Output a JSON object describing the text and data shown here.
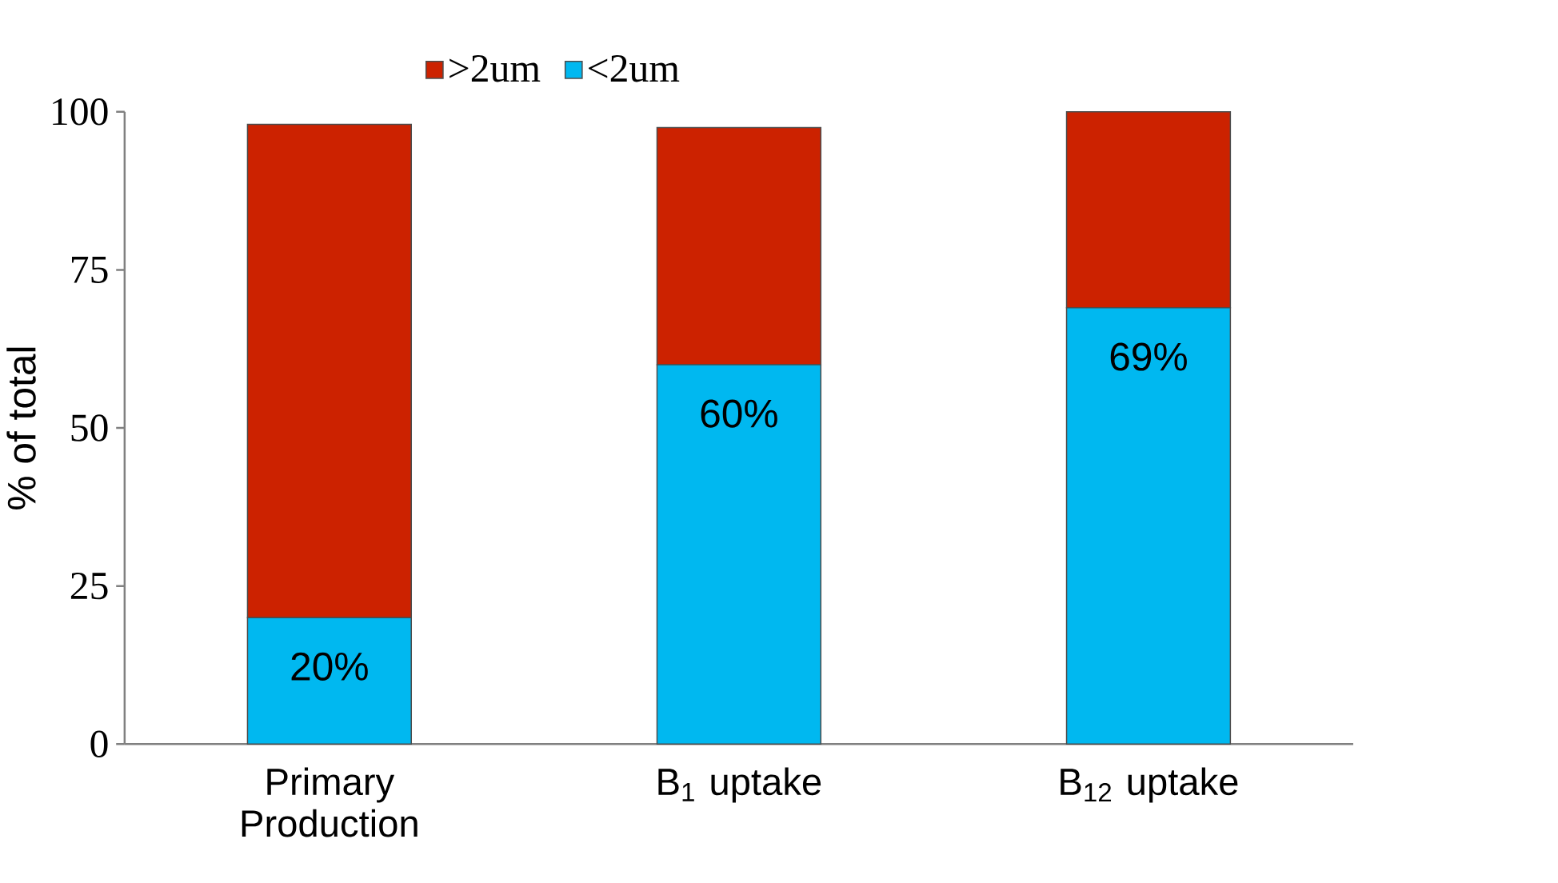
{
  "chart_data": {
    "type": "bar",
    "stacked": true,
    "ylabel": "% of total",
    "categories": [
      "Primary Production",
      "B$_{1}$ uptake",
      "B$_{12}$ uptake"
    ],
    "series": [
      {
        "name": "<2um",
        "color": "#00b8f0",
        "values": [
          20,
          60,
          69
        ],
        "value_labels": [
          "20%",
          "60%",
          "69%"
        ]
      },
      {
        "name": ">2um",
        "color": "#cc2200",
        "values": [
          78,
          37.5,
          31
        ]
      }
    ],
    "ylim": [
      0,
      100
    ],
    "yticks": [
      0,
      25,
      50,
      75,
      100
    ],
    "legend": "top"
  }
}
